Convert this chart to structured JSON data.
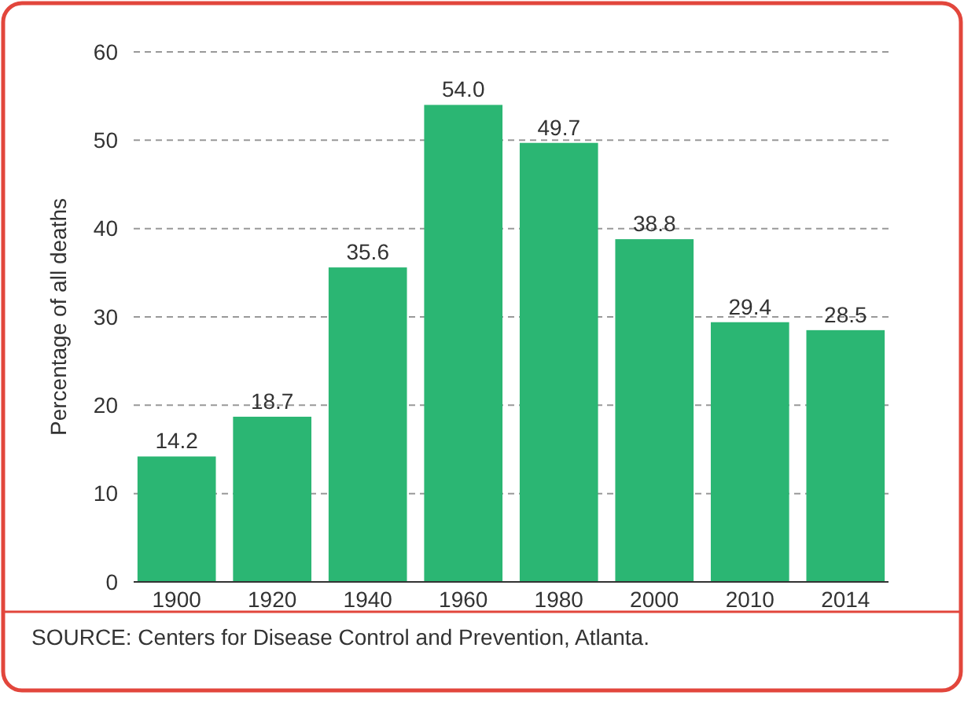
{
  "chart_data": {
    "type": "bar",
    "ylabel": "Percentage of all deaths",
    "categories": [
      "1900",
      "1920",
      "1940",
      "1960",
      "1980",
      "2000",
      "2010",
      "2014"
    ],
    "values": [
      14.2,
      18.7,
      35.6,
      54.0,
      49.7,
      38.8,
      29.4,
      28.5
    ],
    "value_labels": [
      "14.2",
      "18.7",
      "35.6",
      "54.0",
      "49.7",
      "38.8",
      "29.4",
      "28.5"
    ],
    "color": "#2bb673",
    "ylim": [
      0,
      60
    ],
    "yticks": [
      0,
      10,
      20,
      30,
      40,
      50,
      60
    ],
    "grid": "y",
    "annotations": [
      "SOURCE: Centers for Disease Control and Prevention, Atlanta."
    ]
  }
}
